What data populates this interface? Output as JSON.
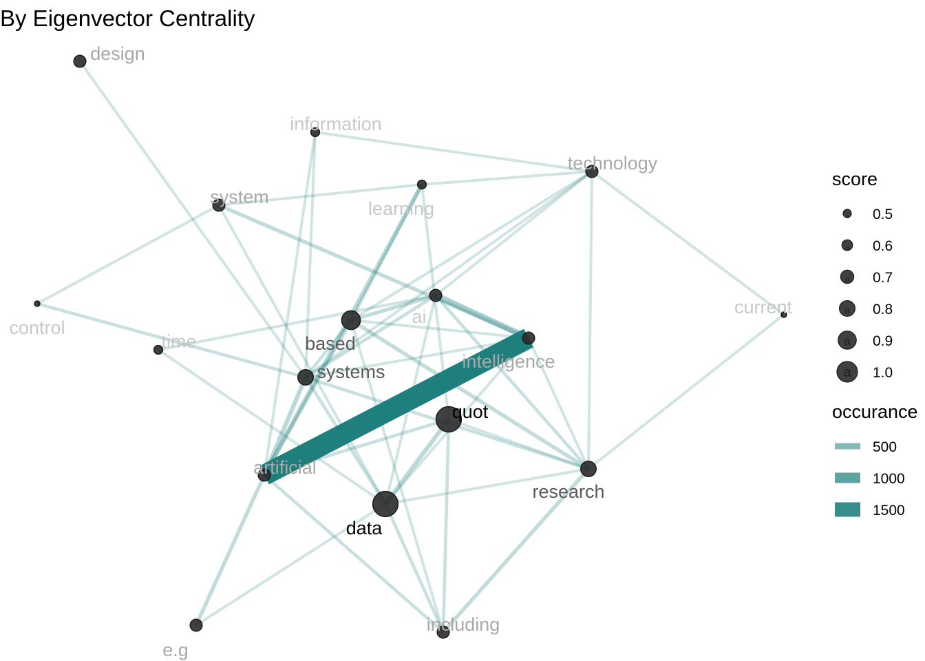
{
  "title": "By Eigenvector Centrality",
  "colors": {
    "edge": "#1f7f7d",
    "node": "#2b2b2b",
    "label_dark": "#000000",
    "label_mid": "#5a5a5a",
    "label_light": "#a8a8a8",
    "label_faint": "#c8c8c8"
  },
  "nodes": [
    {
      "id": "design",
      "label": "design",
      "score": 0.6
    },
    {
      "id": "information",
      "label": "information",
      "score": 0.5
    },
    {
      "id": "technology",
      "label": "technology",
      "score": 0.6
    },
    {
      "id": "system",
      "label": "system",
      "score": 0.6
    },
    {
      "id": "learning",
      "label": "learning",
      "score": 0.5
    },
    {
      "id": "control",
      "label": "control",
      "score": 0.4
    },
    {
      "id": "current",
      "label": "current",
      "score": 0.4
    },
    {
      "id": "ai",
      "label": "ai",
      "score": 0.6
    },
    {
      "id": "based",
      "label": "based",
      "score": 0.8
    },
    {
      "id": "time",
      "label": "time",
      "score": 0.5
    },
    {
      "id": "intelligence",
      "label": "intelligence",
      "score": 0.6
    },
    {
      "id": "systems",
      "label": "systems",
      "score": 0.7
    },
    {
      "id": "quot",
      "label": "quot",
      "score": 1.0
    },
    {
      "id": "artificial",
      "label": "artificial",
      "score": 0.6
    },
    {
      "id": "research",
      "label": "research",
      "score": 0.7
    },
    {
      "id": "data",
      "label": "data",
      "score": 1.0
    },
    {
      "id": "e_g",
      "label": "e.g",
      "score": 0.6
    },
    {
      "id": "including",
      "label": "including",
      "score": 0.6
    }
  ],
  "edges": [
    {
      "source": "artificial",
      "target": "intelligence",
      "occurance": 1800
    },
    {
      "source": "ai",
      "target": "intelligence",
      "occurance": 450
    },
    {
      "source": "design",
      "target": "systems",
      "occurance": 150
    },
    {
      "source": "information",
      "target": "technology",
      "occurance": 150
    },
    {
      "source": "information",
      "target": "systems",
      "occurance": 150
    },
    {
      "source": "information",
      "target": "artificial",
      "occurance": 150
    },
    {
      "source": "system",
      "target": "control",
      "occurance": 150
    },
    {
      "source": "system",
      "target": "learning",
      "occurance": 150
    },
    {
      "source": "system",
      "target": "intelligence",
      "occurance": 250
    },
    {
      "source": "system",
      "target": "data",
      "occurance": 150
    },
    {
      "source": "learning",
      "target": "technology",
      "occurance": 150
    },
    {
      "source": "learning",
      "target": "based",
      "occurance": 200
    },
    {
      "source": "learning",
      "target": "artificial",
      "occurance": 300
    },
    {
      "source": "learning",
      "target": "quot",
      "occurance": 150
    },
    {
      "source": "technology",
      "target": "based",
      "occurance": 150
    },
    {
      "source": "technology",
      "target": "ai",
      "occurance": 150
    },
    {
      "source": "technology",
      "target": "systems",
      "occurance": 150
    },
    {
      "source": "technology",
      "target": "research",
      "occurance": 150
    },
    {
      "source": "technology",
      "target": "current",
      "occurance": 150
    },
    {
      "source": "current",
      "target": "research",
      "occurance": 150
    },
    {
      "source": "control",
      "target": "systems",
      "occurance": 200
    },
    {
      "source": "time",
      "target": "ai",
      "occurance": 150
    },
    {
      "source": "time",
      "target": "data",
      "occurance": 150
    },
    {
      "source": "ai",
      "target": "based",
      "occurance": 250
    },
    {
      "source": "ai",
      "target": "systems",
      "occurance": 200
    },
    {
      "source": "ai",
      "target": "data",
      "occurance": 150
    },
    {
      "source": "ai",
      "target": "research",
      "occurance": 200
    },
    {
      "source": "based",
      "target": "intelligence",
      "occurance": 150
    },
    {
      "source": "based",
      "target": "systems",
      "occurance": 200
    },
    {
      "source": "based",
      "target": "artificial",
      "occurance": 250
    },
    {
      "source": "based",
      "target": "research",
      "occurance": 250
    },
    {
      "source": "based",
      "target": "including",
      "occurance": 150
    },
    {
      "source": "systems",
      "target": "artificial",
      "occurance": 300
    },
    {
      "source": "systems",
      "target": "intelligence",
      "occurance": 150
    },
    {
      "source": "systems",
      "target": "research",
      "occurance": 200
    },
    {
      "source": "systems",
      "target": "data",
      "occurance": 200
    },
    {
      "source": "intelligence",
      "target": "research",
      "occurance": 150
    },
    {
      "source": "intelligence",
      "target": "data",
      "occurance": 150
    },
    {
      "source": "quot",
      "target": "artificial",
      "occurance": 200
    },
    {
      "source": "quot",
      "target": "data",
      "occurance": 300
    },
    {
      "source": "quot",
      "target": "research",
      "occurance": 150
    },
    {
      "source": "quot",
      "target": "including",
      "occurance": 200
    },
    {
      "source": "artificial",
      "target": "e_g",
      "occurance": 250
    },
    {
      "source": "artificial",
      "target": "including",
      "occurance": 200
    },
    {
      "source": "data",
      "target": "research",
      "occurance": 150
    },
    {
      "source": "data",
      "target": "e_g",
      "occurance": 150
    },
    {
      "source": "data",
      "target": "including",
      "occurance": 200
    },
    {
      "source": "research",
      "target": "including",
      "occurance": 250
    }
  ],
  "legend": {
    "score_title": "score",
    "score_items": [
      {
        "label": "0.5",
        "value": 0.5,
        "glyph": "a"
      },
      {
        "label": "0.6",
        "value": 0.6,
        "glyph": "a"
      },
      {
        "label": "0.7",
        "value": 0.7,
        "glyph": "a"
      },
      {
        "label": "0.8",
        "value": 0.8,
        "glyph": "a"
      },
      {
        "label": "0.9",
        "value": 0.9,
        "glyph": "a"
      },
      {
        "label": "1.0",
        "value": 1.0,
        "glyph": "a"
      }
    ],
    "occurance_title": "occurance",
    "occurance_items": [
      {
        "label": "500",
        "value": 500
      },
      {
        "label": "1000",
        "value": 1000
      },
      {
        "label": "1500",
        "value": 1500
      }
    ]
  }
}
